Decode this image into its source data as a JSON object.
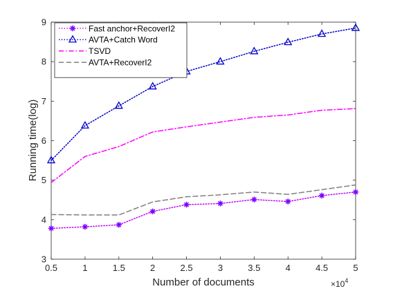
{
  "chart_data": {
    "type": "line",
    "title": "",
    "xlabel": "Number of documents",
    "ylabel": "Running time(log)",
    "x_exponent_label": "×10",
    "x_exponent_power": "4",
    "x": [
      0.5,
      1,
      1.5,
      2,
      2.5,
      3,
      3.5,
      4,
      4.5,
      5
    ],
    "x_tick_labels": [
      "0.5",
      "1",
      "1.5",
      "2",
      "2.5",
      "3",
      "3.5",
      "4",
      "4.5",
      "5"
    ],
    "xlim": [
      0.5,
      5
    ],
    "ylim": [
      3,
      9
    ],
    "y_ticks": [
      3,
      4,
      5,
      6,
      7,
      8,
      9
    ],
    "y_tick_labels": [
      "3",
      "4",
      "5",
      "6",
      "7",
      "8",
      "9"
    ],
    "grid": false,
    "legend_position": "top-left",
    "series": [
      {
        "name": "Fast anchor+RecoverI2",
        "color": "#c000ff",
        "marker_color": "#7a00ff",
        "line_style": "dotted",
        "marker": "asterisk",
        "values": [
          3.78,
          3.82,
          3.87,
          4.21,
          4.38,
          4.41,
          4.51,
          4.46,
          4.61,
          4.7
        ]
      },
      {
        "name": "AVTA+Catch Word",
        "color": "#0000cc",
        "line_style": "dotted",
        "marker": "triangle",
        "values": [
          5.5,
          6.38,
          6.88,
          7.37,
          7.75,
          8.0,
          8.26,
          8.49,
          8.7,
          8.85
        ]
      },
      {
        "name": "TSVD",
        "color": "#ff00ff",
        "line_style": "dashdot",
        "marker": "none",
        "values": [
          4.94,
          5.6,
          5.85,
          6.22,
          6.35,
          6.47,
          6.59,
          6.65,
          6.77,
          6.81
        ]
      },
      {
        "name": "AVTA+RecoverI2",
        "color": "#7f7f7f",
        "line_style": "dashed",
        "marker": "none",
        "values": [
          4.13,
          4.12,
          4.12,
          4.45,
          4.58,
          4.63,
          4.7,
          4.64,
          4.76,
          4.88
        ]
      }
    ]
  }
}
